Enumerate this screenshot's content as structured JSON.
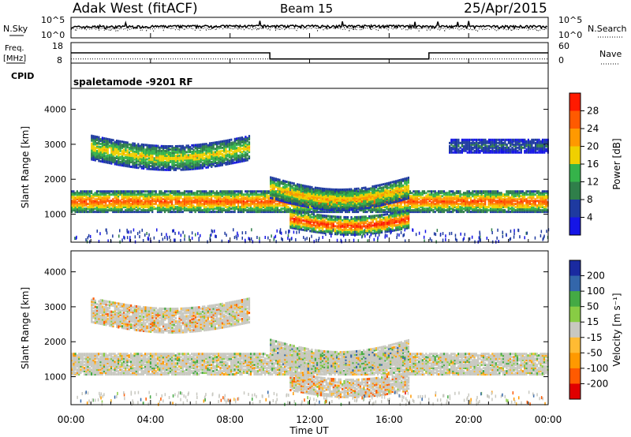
{
  "header": {
    "station": "Adak West (fitACF)",
    "beam": "Beam 15",
    "date": "25/Apr/2015"
  },
  "noise_panel": {
    "left_label": "N.Sky",
    "right_label": "N.Search",
    "left_ticks": [
      "10^5",
      "10^0"
    ],
    "right_ticks": [
      "10^5",
      "10^0"
    ]
  },
  "freq_panel": {
    "left_label_1": "Freq.",
    "left_label_2": "[MHz]",
    "right_label": "Nave",
    "left_ticks": [
      "18",
      "8"
    ],
    "right_ticks": [
      "60",
      "0"
    ]
  },
  "cpid_panel": {
    "label": "CPID",
    "mode_text": "spaletamode -9201 RF"
  },
  "time_axis": {
    "label": "Time UT",
    "ticks": [
      "00:00",
      "04:00",
      "08:00",
      "12:00",
      "16:00",
      "20:00",
      "00:00"
    ]
  },
  "colors": {
    "power_scale": [
      "#1515e6",
      "#1e3aa0",
      "#2f7f4a",
      "#35b34a",
      "#f0d000",
      "#ff9900",
      "#ff5a00",
      "#ff1a00"
    ],
    "velocity_scale": [
      "#e00000",
      "#ff5a00",
      "#ff9900",
      "#ffbb33",
      "#c8c8c0",
      "#88cc44",
      "#44aa44",
      "#3366aa",
      "#1a2aa0"
    ]
  },
  "chart_data": [
    {
      "type": "line",
      "title": "Adak West (fitACF) Beam 15",
      "xlabel": "Time UT",
      "ylabel": "N.Sky",
      "y_scale": "log",
      "ylim": [
        1,
        100000
      ],
      "x": [
        "00:00",
        "04:00",
        "08:00",
        "12:00",
        "16:00",
        "20:00",
        "00:00"
      ],
      "series": [
        {
          "name": "N.Sky",
          "values": [
            300,
            400,
            500,
            500,
            500,
            400,
            400
          ]
        },
        {
          "name": "N.Search",
          "values": [
            80,
            120,
            150,
            150,
            150,
            100,
            100
          ]
        }
      ]
    },
    {
      "type": "line",
      "xlabel": "Time UT",
      "ylabel": "Freq. [MHz]",
      "ylim": [
        8,
        18
      ],
      "x": [
        "00:00",
        "10:00",
        "10:00",
        "18:00",
        "18:00",
        "00:00"
      ],
      "series": [
        {
          "name": "Freq.",
          "values": [
            13,
            13,
            10,
            10,
            13,
            13
          ]
        },
        {
          "name": "Nave",
          "values": [
            12,
            12,
            12,
            12,
            12,
            12
          ]
        }
      ]
    },
    {
      "type": "heatmap",
      "title": "Power",
      "xlabel": "Time UT",
      "ylabel": "Slant Range [km]",
      "ylim": [
        200,
        4600
      ],
      "x_hours": [
        0,
        24
      ],
      "colorbar": {
        "label": "Power [dB]",
        "ticks": [
          "28",
          "24",
          "20",
          "16",
          "12",
          "8",
          "4"
        ],
        "range": [
          0,
          30
        ]
      },
      "echo_regions": [
        {
          "name": "main band",
          "hours": [
            0,
            24
          ],
          "range_km": [
            1100,
            1700
          ],
          "peak_db": 26
        },
        {
          "name": "upper band",
          "hours": [
            1,
            9
          ],
          "range_km": [
            2500,
            3200
          ],
          "peak_db": 18
        },
        {
          "name": "arc",
          "hours": [
            10,
            17
          ],
          "range_km": [
            1500,
            2100
          ],
          "peak_db": 20
        },
        {
          "name": "lower arc",
          "hours": [
            11,
            17
          ],
          "range_km": [
            500,
            1000
          ],
          "peak_db": 28
        },
        {
          "name": "late upper",
          "hours": [
            19,
            24
          ],
          "range_km": [
            2800,
            3200
          ],
          "peak_db": 8
        }
      ]
    },
    {
      "type": "heatmap",
      "title": "Velocity",
      "xlabel": "Time UT",
      "ylabel": "Slant Range [km]",
      "ylim": [
        200,
        4600
      ],
      "x_hours": [
        0,
        24
      ],
      "colorbar": {
        "label": "Velocity [m s⁻¹]",
        "ticks": [
          "200",
          "100",
          "50",
          "15",
          "-15",
          "-50",
          "-100",
          "-200"
        ],
        "range": [
          -250,
          250
        ]
      },
      "echo_regions": [
        {
          "name": "main band",
          "hours": [
            0,
            24
          ],
          "range_km": [
            1100,
            1700
          ],
          "velocity_ms": 0
        },
        {
          "name": "upper band",
          "hours": [
            1,
            9
          ],
          "range_km": [
            2500,
            3200
          ],
          "velocity_ms": -40
        },
        {
          "name": "arc",
          "hours": [
            10,
            17
          ],
          "range_km": [
            1500,
            2100
          ],
          "velocity_ms": 30
        },
        {
          "name": "lower arc",
          "hours": [
            11,
            17
          ],
          "range_km": [
            500,
            1000
          ],
          "velocity_ms": -60
        }
      ]
    }
  ],
  "range_axis": {
    "label": "Slant Range [km]",
    "ticks": [
      "4000",
      "3000",
      "2000",
      "1000"
    ]
  }
}
